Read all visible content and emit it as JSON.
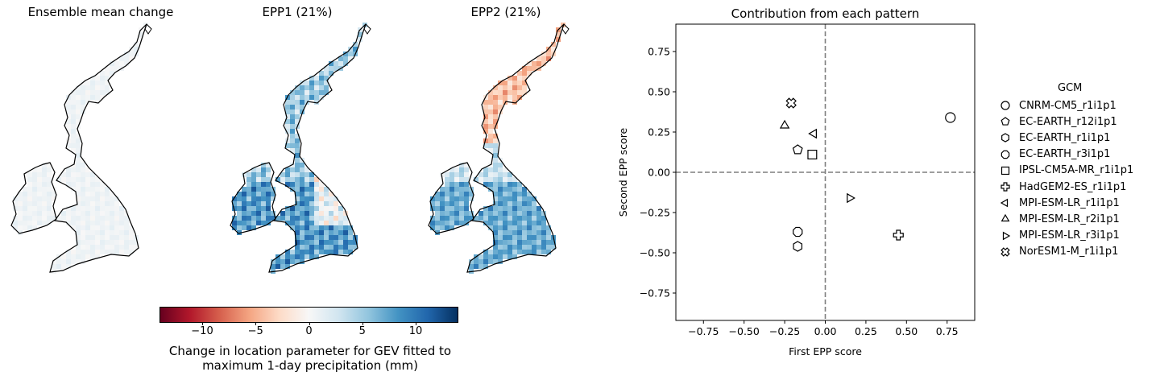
{
  "maps": [
    {
      "title": "Ensemble mean change",
      "pattern": "mean"
    },
    {
      "title": "EPP1 (21%)",
      "pattern": "epp1"
    },
    {
      "title": "EPP2 (21%)",
      "pattern": "epp2"
    }
  ],
  "colorbar": {
    "ticks": [
      "−10",
      "−5",
      "0",
      "5",
      "10"
    ],
    "tick_values": [
      -10,
      -5,
      0,
      5,
      10
    ],
    "range": [
      -14,
      14
    ],
    "label_line1": "Change in location parameter for GEV fitted to",
    "label_line2": "maximum 1-day precipitation (mm)",
    "colormap": "RdBu"
  },
  "chart_data": {
    "type": "scatter",
    "title": "Contribution from each pattern",
    "xlabel": "First EPP score",
    "ylabel": "Second EPP score",
    "xlim": [
      -0.92,
      0.92
    ],
    "ylim": [
      -0.92,
      0.92
    ],
    "xticks": [
      -0.75,
      -0.5,
      -0.25,
      0.0,
      0.25,
      0.5,
      0.75
    ],
    "yticks": [
      -0.75,
      -0.5,
      -0.25,
      0.0,
      0.25,
      0.5,
      0.75
    ],
    "xtick_labels": [
      "−0.75",
      "−0.50",
      "−0.25",
      "0.00",
      "0.25",
      "0.50",
      "0.75"
    ],
    "ytick_labels": [
      "−0.75",
      "−0.50",
      "−0.25",
      "0.00",
      "0.25",
      "0.50",
      "0.75"
    ],
    "reference_lines": {
      "x": 0,
      "y": 0,
      "style": "dashed",
      "color": "#7f7f7f"
    },
    "legend_title": "GCM",
    "legend_position": "right",
    "series": [
      {
        "name": "CNRM-CM5_r1i1p1",
        "marker": "circle",
        "x": 0.77,
        "y": 0.34
      },
      {
        "name": "EC-EARTH_r12i1p1",
        "marker": "pentagon",
        "x": -0.17,
        "y": 0.14
      },
      {
        "name": "EC-EARTH_r1i1p1",
        "marker": "hexagon",
        "x": -0.17,
        "y": -0.46
      },
      {
        "name": "EC-EARTH_r3i1p1",
        "marker": "octagon",
        "x": -0.17,
        "y": -0.37
      },
      {
        "name": "IPSL-CM5A-MR_r1i1p1",
        "marker": "square",
        "x": -0.08,
        "y": 0.11
      },
      {
        "name": "HadGEM2-ES_r1i1p1",
        "marker": "plus",
        "x": 0.45,
        "y": -0.39
      },
      {
        "name": "MPI-ESM-LR_r1i1p1",
        "marker": "triangle-left",
        "x": -0.07,
        "y": 0.24
      },
      {
        "name": "MPI-ESM-LR_r2i1p1",
        "marker": "triangle-up",
        "x": -0.25,
        "y": 0.29
      },
      {
        "name": "MPI-ESM-LR_r3i1p1",
        "marker": "triangle-right",
        "x": 0.15,
        "y": -0.16
      },
      {
        "name": "NorESM1-M_r1i1p1",
        "marker": "x-filled",
        "x": -0.21,
        "y": 0.43
      }
    ]
  }
}
